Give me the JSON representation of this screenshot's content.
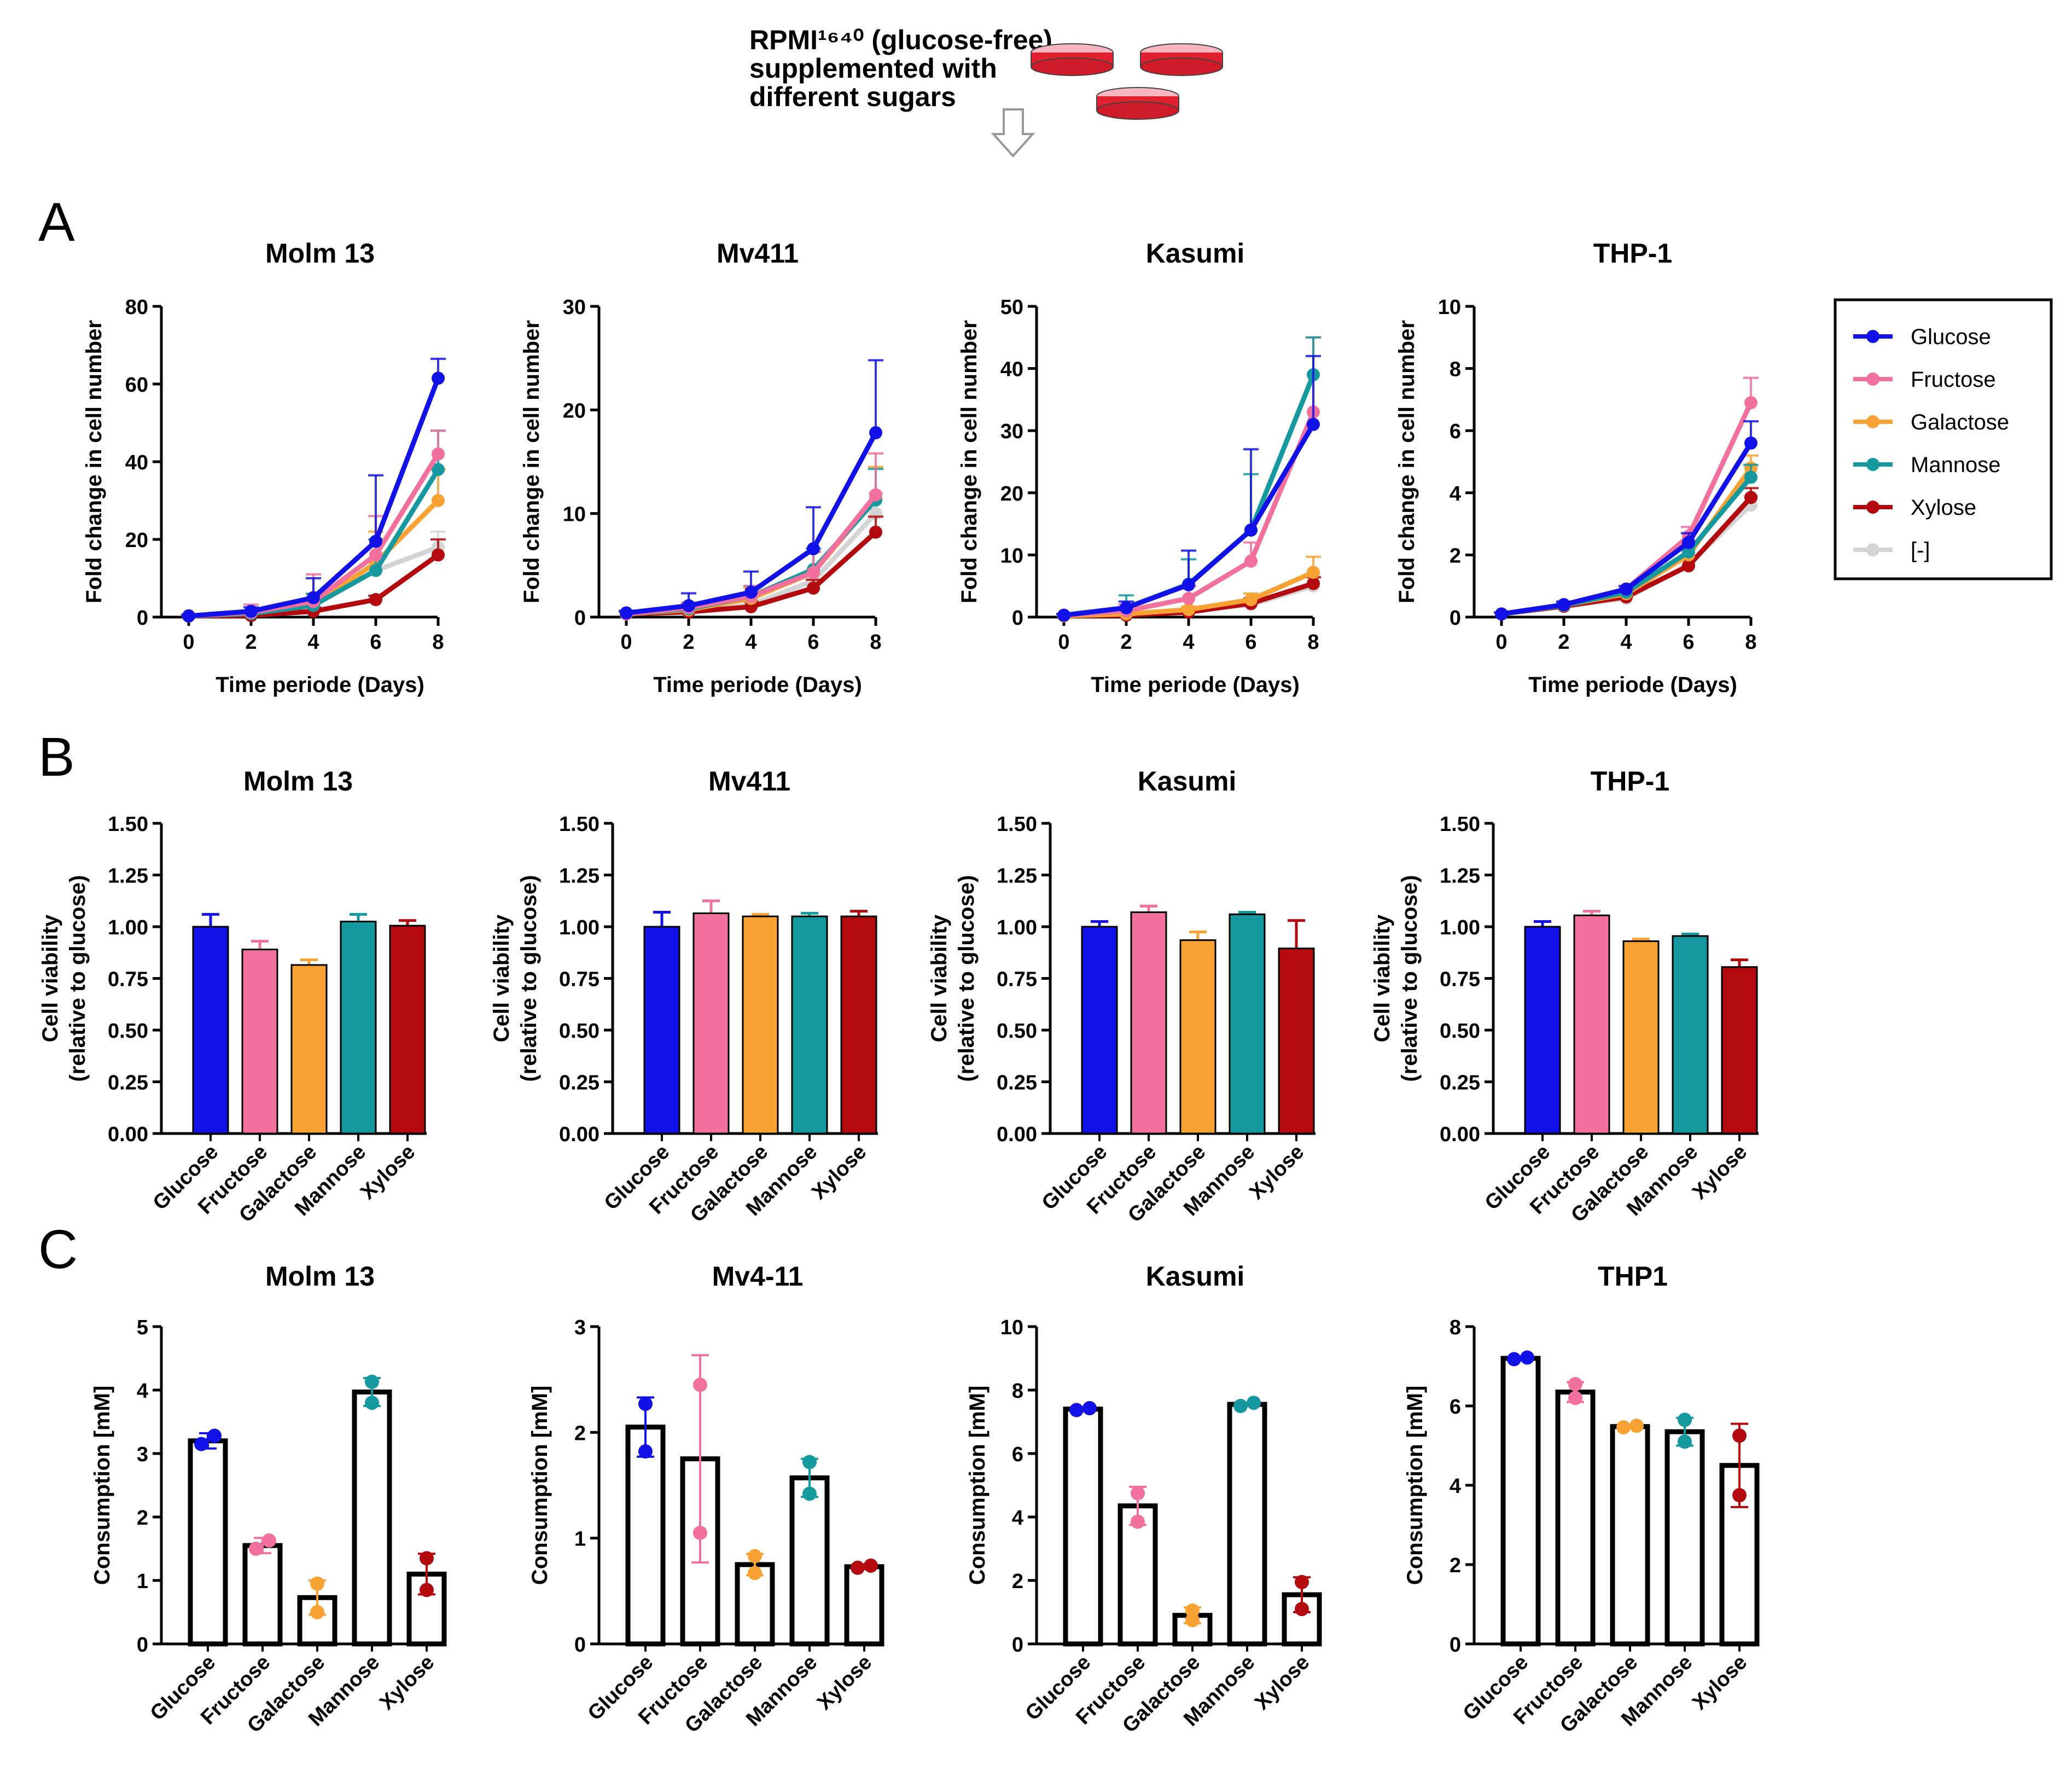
{
  "header": {
    "line1": "RPMI¹⁶⁴⁰ (glucose-free)",
    "line2": "supplemented with",
    "line3": "different sugars"
  },
  "panels": [
    "A",
    "B",
    "C"
  ],
  "colors": {
    "Glucose": "#1212e8",
    "Fructose": "#f2709e",
    "Galactose": "#f7a232",
    "Mannose": "#15999f",
    "Xylose": "#b3080d",
    "[-]": "#d4d4d4"
  },
  "legend": [
    "Glucose",
    "Fructose",
    "Galactose",
    "Mannose",
    "Xylose",
    "[-]"
  ],
  "chart_data": [
    {
      "panel": "A",
      "type": "line",
      "title": "Molm 13",
      "xlabel": "Time periode (Days)",
      "ylabel": "Fold change in cell number",
      "x": [
        0,
        2,
        4,
        6,
        8
      ],
      "ylim": [
        0,
        80
      ],
      "yticks": [
        0,
        20,
        40,
        60,
        80
      ],
      "series": [
        {
          "name": "[-]",
          "values": [
            0.3,
            0.8,
            3,
            12,
            18
          ],
          "err": [
            0.3,
            0.5,
            2,
            3,
            4
          ]
        },
        {
          "name": "Xylose",
          "values": [
            0.3,
            0.4,
            1.5,
            4.5,
            16
          ],
          "err": [
            0.2,
            0.3,
            1,
            1,
            4
          ]
        },
        {
          "name": "Galactose",
          "values": [
            0.3,
            0.9,
            3,
            14,
            30
          ],
          "err": [
            0.2,
            0.5,
            3,
            8,
            8
          ]
        },
        {
          "name": "Mannose",
          "values": [
            0.3,
            0.9,
            3,
            12,
            38
          ],
          "err": [
            0.2,
            0.5,
            3,
            8,
            10
          ]
        },
        {
          "name": "Fructose",
          "values": [
            0.3,
            1.2,
            4,
            16,
            42
          ],
          "err": [
            0.2,
            2,
            7,
            10,
            6
          ]
        },
        {
          "name": "Glucose",
          "values": [
            0.3,
            1.5,
            5,
            19.5,
            61.5
          ],
          "err": [
            0.3,
            1,
            5,
            17,
            5
          ]
        }
      ]
    },
    {
      "panel": "A",
      "type": "line",
      "title": "Mv411",
      "xlabel": "Time periode (Days)",
      "ylabel": "Fold change in cell number",
      "x": [
        0,
        2,
        4,
        6,
        8
      ],
      "ylim": [
        0,
        30
      ],
      "yticks": [
        0,
        10,
        20,
        30
      ],
      "series": [
        {
          "name": "[-]",
          "values": [
            0.3,
            0.5,
            1.2,
            3.5,
            10
          ],
          "err": [
            0.2,
            0.3,
            0.5,
            1,
            2
          ]
        },
        {
          "name": "Xylose",
          "values": [
            0.3,
            0.5,
            1,
            2.8,
            8.2
          ],
          "err": [
            0.2,
            0.3,
            0.5,
            0.8,
            1.5
          ]
        },
        {
          "name": "Galactose",
          "values": [
            0.3,
            0.7,
            1.8,
            4.3,
            11.5
          ],
          "err": [
            0.2,
            0.5,
            1,
            2,
            3
          ]
        },
        {
          "name": "Mannose",
          "values": [
            0.3,
            0.8,
            2,
            4.6,
            11.3
          ],
          "err": [
            0.2,
            0.5,
            1,
            2,
            3
          ]
        },
        {
          "name": "Fructose",
          "values": [
            0.3,
            0.9,
            2,
            4.3,
            11.8
          ],
          "err": [
            0.2,
            0.5,
            1,
            2,
            4
          ]
        },
        {
          "name": "Glucose",
          "values": [
            0.4,
            1.1,
            2.4,
            6.6,
            17.8
          ],
          "err": [
            0.2,
            1.2,
            2,
            4,
            7
          ]
        }
      ]
    },
    {
      "panel": "A",
      "type": "line",
      "title": "Kasumi",
      "xlabel": "Time periode (Days)",
      "ylabel": "Fold change in cell number",
      "x": [
        0,
        2,
        4,
        6,
        8
      ],
      "ylim": [
        0,
        50
      ],
      "yticks": [
        0,
        10,
        20,
        30,
        40,
        50
      ],
      "series": [
        {
          "name": "[-]",
          "values": [
            0.2,
            0.4,
            1,
            2,
            5
          ],
          "err": [
            0.1,
            0.3,
            0.5,
            0.8,
            1.5
          ]
        },
        {
          "name": "Xylose",
          "values": [
            0.2,
            0.3,
            0.8,
            2.2,
            5.4
          ],
          "err": [
            0.1,
            0.3,
            0.5,
            0.8,
            1
          ]
        },
        {
          "name": "Galactose",
          "values": [
            0.2,
            0.5,
            1.2,
            2.8,
            7.2
          ],
          "err": [
            0.1,
            0.3,
            0.5,
            1,
            2.5
          ]
        },
        {
          "name": "Fructose",
          "values": [
            0.3,
            1,
            3,
            9,
            33
          ],
          "err": [
            0.2,
            1,
            2,
            3,
            12
          ]
        },
        {
          "name": "Mannose",
          "values": [
            0.3,
            1.5,
            5.3,
            14,
            39
          ],
          "err": [
            0.2,
            2,
            4,
            9,
            6
          ]
        },
        {
          "name": "Glucose",
          "values": [
            0.3,
            1.5,
            5.2,
            14,
            31
          ],
          "err": [
            0.2,
            1,
            5.5,
            13,
            11
          ]
        }
      ]
    },
    {
      "panel": "A",
      "type": "line",
      "title": "THP-1",
      "xlabel": "Time periode (Days)",
      "ylabel": "Fold change in cell number",
      "x": [
        0,
        2,
        4,
        6,
        8
      ],
      "ylim": [
        0,
        10
      ],
      "yticks": [
        0,
        2,
        4,
        6,
        8,
        10
      ],
      "series": [
        {
          "name": "[-]",
          "values": [
            0.1,
            0.35,
            0.6,
            1.7,
            3.6
          ],
          "err": [
            0.05,
            0.1,
            0.1,
            0.2,
            0.3
          ]
        },
        {
          "name": "Xylose",
          "values": [
            0.1,
            0.35,
            0.65,
            1.65,
            3.85
          ],
          "err": [
            0.05,
            0.1,
            0.1,
            0.2,
            0.3
          ]
        },
        {
          "name": "Galactose",
          "values": [
            0.1,
            0.38,
            0.75,
            2,
            4.8
          ],
          "err": [
            0.05,
            0.1,
            0.1,
            0.2,
            0.4
          ]
        },
        {
          "name": "Mannose",
          "values": [
            0.1,
            0.38,
            0.8,
            2.1,
            4.5
          ],
          "err": [
            0.05,
            0.1,
            0.1,
            0.2,
            0.4
          ]
        },
        {
          "name": "Fructose",
          "values": [
            0.1,
            0.4,
            0.9,
            2.6,
            6.9
          ],
          "err": [
            0.05,
            0.1,
            0.1,
            0.3,
            0.8
          ]
        },
        {
          "name": "Glucose",
          "values": [
            0.1,
            0.4,
            0.9,
            2.4,
            5.6
          ],
          "err": [
            0.05,
            0.1,
            0.1,
            0.3,
            0.7
          ]
        }
      ]
    },
    {
      "panel": "B",
      "type": "bar",
      "title": "Molm 13",
      "ylabel": "Cell viability",
      "ylabel2": "(relative to glucose)",
      "categories": [
        "Glucose",
        "Fructose",
        "Galactose",
        "Mannose",
        "Xylose"
      ],
      "values": [
        1.0,
        0.89,
        0.815,
        1.025,
        1.005
      ],
      "err": [
        0.06,
        0.04,
        0.025,
        0.035,
        0.025
      ],
      "ylim": [
        0,
        1.5
      ],
      "yticks": [
        "0.00",
        "0.25",
        "0.50",
        "0.75",
        "1.00",
        "1.25",
        "1.50"
      ]
    },
    {
      "panel": "B",
      "type": "bar",
      "title": "Mv411",
      "ylabel": "Cell viability",
      "ylabel2": "(relative to glucose)",
      "categories": [
        "Glucose",
        "Fructose",
        "Galactose",
        "Mannose",
        "Xylose"
      ],
      "values": [
        1.0,
        1.065,
        1.05,
        1.05,
        1.05
      ],
      "err": [
        0.07,
        0.06,
        0.01,
        0.015,
        0.025
      ],
      "ylim": [
        0,
        1.5
      ],
      "yticks": [
        "0.00",
        "0.25",
        "0.50",
        "0.75",
        "1.00",
        "1.25",
        "1.50"
      ]
    },
    {
      "panel": "B",
      "type": "bar",
      "title": "Kasumi",
      "ylabel": "Cell viability",
      "ylabel2": "(relative to glucose)",
      "categories": [
        "Glucose",
        "Fructose",
        "Galactose",
        "Mannose",
        "Xylose"
      ],
      "values": [
        1.0,
        1.07,
        0.935,
        1.06,
        0.895
      ],
      "err": [
        0.025,
        0.03,
        0.04,
        0.01,
        0.135
      ],
      "ylim": [
        0,
        1.5
      ],
      "yticks": [
        "0.00",
        "0.25",
        "0.50",
        "0.75",
        "1.00",
        "1.25",
        "1.50"
      ]
    },
    {
      "panel": "B",
      "type": "bar",
      "title": "THP-1",
      "ylabel": "Cell viability",
      "ylabel2": "(relative to glucose)",
      "categories": [
        "Glucose",
        "Fructose",
        "Galactose",
        "Mannose",
        "Xylose"
      ],
      "values": [
        1.0,
        1.055,
        0.93,
        0.955,
        0.805
      ],
      "err": [
        0.025,
        0.02,
        0.01,
        0.01,
        0.035
      ],
      "ylim": [
        0,
        1.5
      ],
      "yticks": [
        "0.00",
        "0.25",
        "0.50",
        "0.75",
        "1.00",
        "1.25",
        "1.50"
      ]
    },
    {
      "panel": "C",
      "type": "bar",
      "title": "Molm 13",
      "ylabel": "Consumption [mM]",
      "categories": [
        "Glucose",
        "Fructose",
        "Galactose",
        "Mannose",
        "Xylose"
      ],
      "values": [
        3.2,
        1.55,
        0.73,
        3.97,
        1.1
      ],
      "err": [
        0.12,
        0.12,
        0.27,
        0.22,
        0.32
      ],
      "points": [
        [
          3.15,
          3.28
        ],
        [
          1.5,
          1.63
        ],
        [
          0.5,
          0.95
        ],
        [
          3.8,
          4.13
        ],
        [
          0.85,
          1.35
        ]
      ],
      "ylim": [
        0,
        5
      ],
      "yticks": [
        "0",
        "1",
        "2",
        "3",
        "4",
        "5"
      ]
    },
    {
      "panel": "C",
      "type": "bar",
      "title": "Mv4-11",
      "ylabel": "Consumption [mM]",
      "categories": [
        "Glucose",
        "Fructose",
        "Galactose",
        "Mannose",
        "Xylose"
      ],
      "values": [
        2.05,
        1.75,
        0.75,
        1.57,
        0.73
      ],
      "err": [
        0.28,
        0.98,
        0.1,
        0.18,
        0.02
      ],
      "points": [
        [
          1.82,
          2.27
        ],
        [
          1.05,
          2.45
        ],
        [
          0.67,
          0.83
        ],
        [
          1.42,
          1.72
        ],
        [
          0.72,
          0.74
        ]
      ],
      "ylim": [
        0,
        3
      ],
      "yticks": [
        "0",
        "1",
        "2",
        "3"
      ]
    },
    {
      "panel": "C",
      "type": "bar",
      "title": "Kasumi",
      "ylabel": "Consumption [mM]",
      "categories": [
        "Glucose",
        "Fructose",
        "Galactose",
        "Mannose",
        "Xylose"
      ],
      "values": [
        7.4,
        4.35,
        0.9,
        7.55,
        1.55
      ],
      "err": [
        0.05,
        0.6,
        0.25,
        0.05,
        0.55
      ],
      "points": [
        [
          7.37,
          7.43
        ],
        [
          3.85,
          4.75
        ],
        [
          0.75,
          1.05
        ],
        [
          7.5,
          7.6
        ],
        [
          1.1,
          1.95
        ]
      ],
      "ylim": [
        0,
        10
      ],
      "yticks": [
        "0",
        "2",
        "4",
        "6",
        "8",
        "10"
      ]
    },
    {
      "panel": "C",
      "type": "bar",
      "title": "THP1",
      "ylabel": "Consumption [mM]",
      "categories": [
        "Glucose",
        "Fructose",
        "Galactose",
        "Mannose",
        "Xylose"
      ],
      "values": [
        7.2,
        6.35,
        5.48,
        5.35,
        4.5
      ],
      "err": [
        0.03,
        0.25,
        0.03,
        0.35,
        1.05
      ],
      "points": [
        [
          7.18,
          7.22
        ],
        [
          6.2,
          6.55
        ],
        [
          5.46,
          5.5
        ],
        [
          5.1,
          5.65
        ],
        [
          3.75,
          5.25
        ]
      ],
      "ylim": [
        0,
        8
      ],
      "yticks": [
        "0",
        "2",
        "4",
        "6",
        "8"
      ]
    }
  ]
}
